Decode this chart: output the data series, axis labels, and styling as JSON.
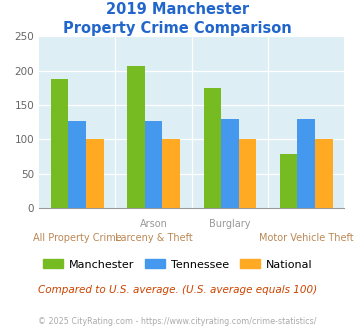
{
  "title_line1": "2019 Manchester",
  "title_line2": "Property Crime Comparison",
  "manchester_values": [
    188,
    207,
    174,
    79
  ],
  "tennessee_values": [
    126,
    127,
    130,
    129
  ],
  "national_values": [
    101,
    101,
    101,
    101
  ],
  "manchester_color": "#77bb22",
  "tennessee_color": "#4499ee",
  "national_color": "#ffaa22",
  "bg_color": "#ddeef5",
  "title_color": "#2266cc",
  "xlabel_top_color": "#999999",
  "xlabel_bottom_color": "#bb8855",
  "legend_labels": [
    "Manchester",
    "Tennessee",
    "National"
  ],
  "footer_text": "Compared to U.S. average. (U.S. average equals 100)",
  "copyright_text": "© 2025 CityRating.com - https://www.cityrating.com/crime-statistics/",
  "footer_color": "#cc4400",
  "copyright_color": "#aaaaaa",
  "ylim": [
    0,
    250
  ],
  "yticks": [
    0,
    50,
    100,
    150,
    200,
    250
  ],
  "top_labels": [
    "",
    "Arson",
    "Burglary",
    ""
  ],
  "bottom_labels": [
    "All Property Crime",
    "Larceny & Theft",
    "",
    "Motor Vehicle Theft"
  ]
}
